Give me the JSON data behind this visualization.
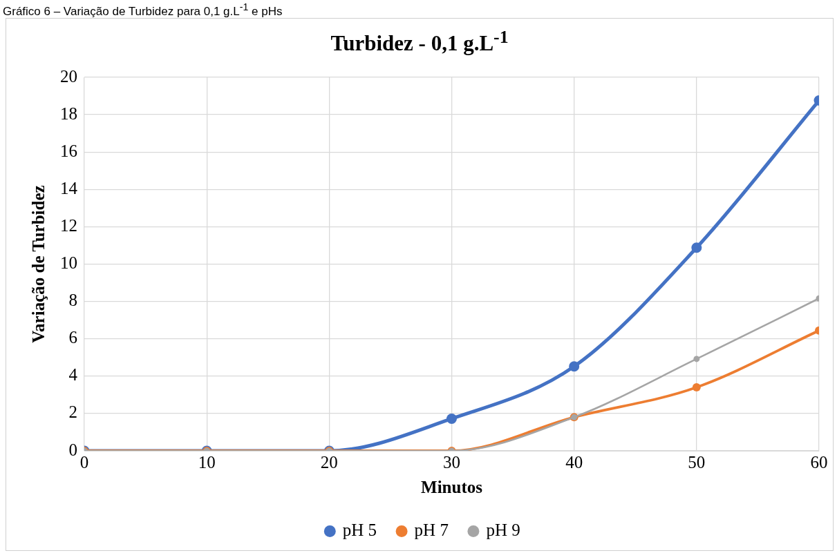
{
  "chart_data": {
    "type": "line",
    "title": "Turbidez - 0,1 g.L$^{-1}$",
    "annotations": [
      "Gráfico 6 – Variação de Turbidez para 0,1 g.L$^{-1}$ e pHs"
    ],
    "xlabel": "Minutos",
    "ylabel": "Variação de Turbidez",
    "x": [
      0,
      10,
      20,
      30,
      40,
      50,
      60
    ],
    "xlim": [
      0,
      60
    ],
    "xticks": [
      0,
      10,
      20,
      30,
      40,
      50,
      60
    ],
    "ylim": [
      0,
      20
    ],
    "yticks": [
      0,
      2,
      4,
      6,
      8,
      10,
      12,
      14,
      16,
      18,
      20
    ],
    "grid": true,
    "legend": "bottom",
    "marker": "circle",
    "series": [
      {
        "name": "pH 5",
        "color": "#4472c4",
        "values": [
          0,
          0,
          0,
          1.72,
          4.52,
          10.88,
          18.76
        ]
      },
      {
        "name": "pH 7",
        "color": "#ed7d31",
        "values": [
          0,
          0,
          0,
          0,
          1.8,
          3.4,
          6.44
        ]
      },
      {
        "name": "pH 9",
        "color": "#a5a5a5",
        "values": [
          0,
          0,
          0,
          0,
          1.8,
          4.92,
          8.16
        ]
      }
    ]
  }
}
